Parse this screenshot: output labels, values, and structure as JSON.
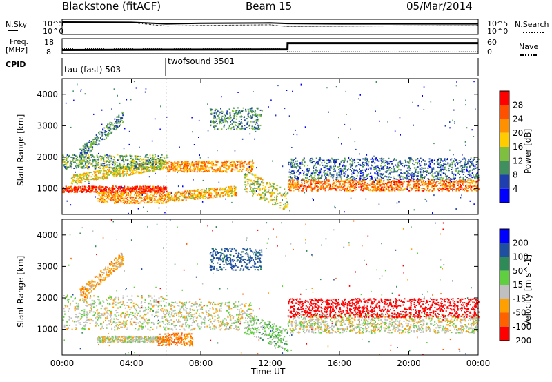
{
  "header": {
    "station": "Blackstone (fitACF)",
    "beam": "Beam 15",
    "date": "05/Mar/2014"
  },
  "strip": {
    "nsky_label": "N.Sky",
    "nsearch_label": "N.Search",
    "noise_ticks": [
      "10^5",
      "10^0"
    ],
    "freq_label": "Freq.",
    "freq_unit": "[MHz]",
    "freq_ticks": [
      "18",
      "8"
    ],
    "nave_label": "Nave",
    "nave_ticks": [
      "60",
      "0"
    ],
    "cpid_label": "CPID",
    "cpid_segments": [
      "tau (fast) 503",
      "twofsound 3501"
    ]
  },
  "colors": {
    "power": [
      "#0000ff",
      "#1f3fae",
      "#3f8f5f",
      "#7fbf3f",
      "#ffcc00",
      "#ff9000",
      "#ff5000",
      "#ff0000"
    ],
    "velocity": [
      "#0000ff",
      "#1f4fa0",
      "#2e8b57",
      "#5fcf3f",
      "#c0c0c0",
      "#ffa000",
      "#ff6000",
      "#ff0000"
    ],
    "trace": "#000000"
  },
  "chart_data": [
    {
      "type": "line",
      "panel": "noise",
      "series": [
        {
          "name": "N.Sky",
          "x": [
            0,
            4,
            6,
            8,
            12,
            13,
            16,
            20,
            24
          ],
          "values": [
            4.1,
            4.0,
            3.5,
            3.7,
            3.8,
            3.6,
            3.5,
            3.5,
            3.5
          ]
        },
        {
          "name": "N.Search",
          "x": [
            0,
            4,
            6,
            8,
            12,
            13,
            16,
            20,
            24
          ],
          "values": [
            3.9,
            3.9,
            2.8,
            3.0,
            3.2,
            2.6,
            2.7,
            2.9,
            3.0
          ]
        }
      ],
      "yticks": [
        "10^5",
        "10^0"
      ],
      "ylim": [
        0,
        5
      ],
      "xlim": [
        0,
        24
      ]
    },
    {
      "type": "line",
      "panel": "frequency",
      "series": [
        {
          "name": "Freq.",
          "x": [
            0,
            6,
            13,
            13.01,
            24
          ],
          "values": [
            10.5,
            10.7,
            10.9,
            15.0,
            15.0
          ]
        },
        {
          "name": "Nave",
          "x": [
            0,
            13,
            13.01,
            24
          ],
          "values": [
            20,
            20,
            8,
            8
          ]
        }
      ],
      "yticks": [
        "18",
        "8"
      ],
      "ylim": [
        8,
        18
      ],
      "y2ticks": [
        "60",
        "0"
      ],
      "y2lim": [
        0,
        60
      ],
      "xlim": [
        0,
        24
      ]
    },
    {
      "type": "heatmap",
      "panel": "power",
      "ylabel": "Slant Range [km]",
      "colorbar_label": "Power [dB]",
      "xlim": [
        0,
        24
      ],
      "ylim": [
        180,
        4500
      ],
      "yticks": [
        1000,
        2000,
        3000,
        4000
      ],
      "cbar_ticks": [
        4,
        8,
        12,
        16,
        20,
        24,
        28
      ],
      "cbar_range": [
        0,
        32
      ],
      "features": [
        {
          "t_start": 0.0,
          "t_end": 6.0,
          "r_start": 900,
          "r_end": 1100,
          "r_drift": 0,
          "level": 28
        },
        {
          "t_start": 0.5,
          "t_end": 6.0,
          "r_start": 1150,
          "r_end": 1450,
          "r_drift": 500,
          "level": 18
        },
        {
          "t_start": 0.0,
          "t_end": 6.0,
          "r_start": 1650,
          "r_end": 2100,
          "r_drift": 0,
          "level": 12
        },
        {
          "t_start": 1.0,
          "t_end": 3.5,
          "r_start": 1900,
          "r_end": 2300,
          "r_drift": 1200,
          "level": 10
        },
        {
          "t_start": 2.0,
          "t_end": 6.0,
          "r_start": 550,
          "r_end": 900,
          "r_drift": 0,
          "level": 22
        },
        {
          "t_start": 6.0,
          "t_end": 11.0,
          "r_start": 1550,
          "r_end": 1900,
          "r_drift": 0,
          "level": 22
        },
        {
          "t_start": 6.0,
          "t_end": 10.0,
          "r_start": 600,
          "r_end": 900,
          "r_drift": 200,
          "level": 20
        },
        {
          "t_start": 8.5,
          "t_end": 11.5,
          "r_start": 2900,
          "r_end": 3600,
          "r_drift": 0,
          "level": 10
        },
        {
          "t_start": 10.5,
          "t_end": 13.0,
          "r_start": 900,
          "r_end": 1600,
          "r_drift": -600,
          "level": 16
        },
        {
          "t_start": 13.0,
          "t_end": 24.0,
          "r_start": 950,
          "r_end": 1300,
          "r_drift": 0,
          "level": 24
        },
        {
          "t_start": 13.0,
          "t_end": 24.0,
          "r_start": 1300,
          "r_end": 2000,
          "r_drift": 0,
          "level": 8
        }
      ]
    },
    {
      "type": "heatmap",
      "panel": "velocity",
      "ylabel": "Slant Range [km]",
      "xlabel": "Time UT",
      "colorbar_label": "Velocity [m s^-1]",
      "xlim": [
        0,
        24
      ],
      "ylim": [
        180,
        4500
      ],
      "yticks": [
        1000,
        2000,
        3000,
        4000
      ],
      "xticks": [
        "00:00",
        "04:00",
        "08:00",
        "12:00",
        "16:00",
        "20:00",
        "00:00"
      ],
      "cbar_ticks": [
        200,
        100,
        50,
        15,
        -15,
        -50,
        -100,
        -200
      ],
      "features": [
        {
          "t_start": 0.0,
          "t_end": 6.0,
          "r_start": 1000,
          "r_end": 2100,
          "r_drift": 0,
          "velocity": 0
        },
        {
          "t_start": 1.0,
          "t_end": 3.5,
          "r_start": 1900,
          "r_end": 2300,
          "r_drift": 1200,
          "velocity": -30
        },
        {
          "t_start": 2.0,
          "t_end": 6.0,
          "r_start": 600,
          "r_end": 800,
          "r_drift": 0,
          "velocity": 0
        },
        {
          "t_start": 5.5,
          "t_end": 7.5,
          "r_start": 500,
          "r_end": 900,
          "r_drift": 0,
          "velocity": -60
        },
        {
          "t_start": 6.0,
          "t_end": 11.0,
          "r_start": 1000,
          "r_end": 1900,
          "r_drift": 0,
          "velocity": 0
        },
        {
          "t_start": 8.5,
          "t_end": 11.5,
          "r_start": 2900,
          "r_end": 3600,
          "r_drift": 0,
          "velocity": 120
        },
        {
          "t_start": 10.5,
          "t_end": 13.0,
          "r_start": 900,
          "r_end": 1600,
          "r_drift": -600,
          "velocity": 30
        },
        {
          "t_start": 13.0,
          "t_end": 24.0,
          "r_start": 900,
          "r_end": 1500,
          "r_drift": 0,
          "velocity": 0
        },
        {
          "t_start": 13.0,
          "t_end": 24.0,
          "r_start": 1400,
          "r_end": 2000,
          "r_drift": 0,
          "velocity": -150
        }
      ]
    }
  ]
}
